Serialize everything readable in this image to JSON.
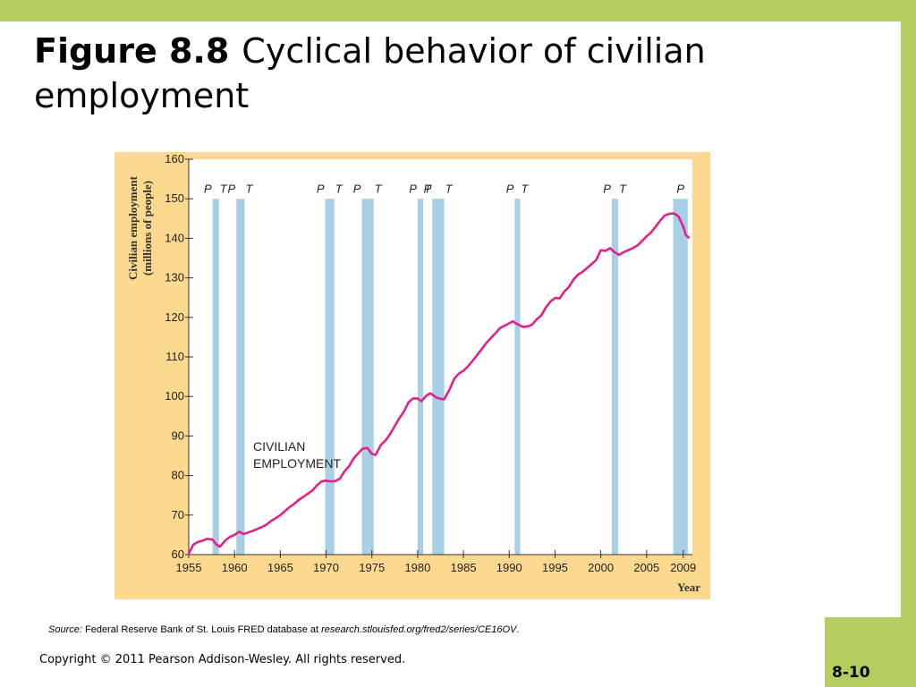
{
  "slide": {
    "title_prefix": "Figure 8.8",
    "title_text": "Cyclical behavior of civilian employment",
    "source_label": "Source:",
    "source_text": "Federal Reserve Bank of St. Louis FRED database at",
    "source_url": "research.stlouisfed.org/fred2/series/CE16OV",
    "source_end": ".",
    "copyright": "Copyright © 2011 Pearson Addison-Wesley. All rights reserved.",
    "slide_number": "8-10",
    "colors": {
      "accent": "#b5cd5f",
      "panel": "#fcd98f",
      "series": "#e0218a",
      "recession": "#a9cfe6"
    }
  },
  "chart_data": {
    "type": "line",
    "title": "",
    "xlabel": "Year",
    "ylabel": "Civilian employment (millions of people)",
    "ylabel_lines": [
      "Civilian employment",
      "(millions of people)"
    ],
    "xlim": [
      1955,
      2010
    ],
    "ylim": [
      60,
      160
    ],
    "xticks": [
      1955,
      1960,
      1965,
      1970,
      1975,
      1980,
      1985,
      1990,
      1995,
      2000,
      2005,
      2009
    ],
    "yticks": [
      60,
      70,
      80,
      90,
      100,
      110,
      120,
      130,
      140,
      150,
      160
    ],
    "grid": false,
    "annotation": [
      "CIVILIAN",
      "EMPLOYMENT"
    ],
    "recessions": [
      {
        "start": 1957.6,
        "end": 1958.3,
        "markers": [
          "P",
          "T"
        ]
      },
      {
        "start": 1960.2,
        "end": 1961.1,
        "markers": [
          "P",
          "T"
        ]
      },
      {
        "start": 1969.9,
        "end": 1970.9,
        "markers": [
          "P",
          "T"
        ]
      },
      {
        "start": 1973.9,
        "end": 1975.2,
        "markers": [
          "P",
          "T"
        ]
      },
      {
        "start": 1980.0,
        "end": 1980.6,
        "markers": [
          "P",
          "T"
        ]
      },
      {
        "start": 1981.6,
        "end": 1982.9,
        "markers": [
          "P",
          "T"
        ]
      },
      {
        "start": 1990.6,
        "end": 1991.2,
        "markers": [
          "P",
          "T"
        ]
      },
      {
        "start": 2001.2,
        "end": 2001.9,
        "markers": [
          "P",
          "T"
        ]
      },
      {
        "start": 2007.9,
        "end": 2009.5,
        "markers": [
          "P"
        ]
      }
    ],
    "series": [
      {
        "values": [
          [
            1955.0,
            60.2
          ],
          [
            1955.5,
            62.5
          ],
          [
            1956.0,
            63.2
          ],
          [
            1956.5,
            63.5
          ],
          [
            1957.0,
            64.0
          ],
          [
            1957.6,
            63.8
          ],
          [
            1958.0,
            62.6
          ],
          [
            1958.4,
            62.0
          ],
          [
            1959.0,
            63.6
          ],
          [
            1959.5,
            64.5
          ],
          [
            1960.0,
            65.0
          ],
          [
            1960.5,
            65.8
          ],
          [
            1961.0,
            65.2
          ],
          [
            1961.5,
            65.6
          ],
          [
            1962.0,
            66.0
          ],
          [
            1962.5,
            66.5
          ],
          [
            1963.0,
            67.0
          ],
          [
            1963.5,
            67.6
          ],
          [
            1964.0,
            68.5
          ],
          [
            1964.5,
            69.2
          ],
          [
            1965.0,
            70.0
          ],
          [
            1965.5,
            71.0
          ],
          [
            1966.0,
            72.0
          ],
          [
            1966.5,
            72.8
          ],
          [
            1967.0,
            73.8
          ],
          [
            1967.5,
            74.6
          ],
          [
            1968.0,
            75.4
          ],
          [
            1968.5,
            76.2
          ],
          [
            1969.0,
            77.5
          ],
          [
            1969.5,
            78.5
          ],
          [
            1970.0,
            78.7
          ],
          [
            1970.5,
            78.5
          ],
          [
            1971.0,
            78.6
          ],
          [
            1971.5,
            79.2
          ],
          [
            1972.0,
            81.0
          ],
          [
            1972.5,
            82.3
          ],
          [
            1973.0,
            84.3
          ],
          [
            1973.5,
            85.6
          ],
          [
            1974.0,
            86.8
          ],
          [
            1974.5,
            87.0
          ],
          [
            1975.0,
            85.5
          ],
          [
            1975.4,
            85.2
          ],
          [
            1976.0,
            87.8
          ],
          [
            1976.5,
            88.9
          ],
          [
            1977.0,
            90.5
          ],
          [
            1977.5,
            92.5
          ],
          [
            1978.0,
            94.5
          ],
          [
            1978.5,
            96.2
          ],
          [
            1979.0,
            98.5
          ],
          [
            1979.5,
            99.5
          ],
          [
            1980.0,
            99.5
          ],
          [
            1980.4,
            98.8
          ],
          [
            1981.0,
            100.3
          ],
          [
            1981.4,
            100.8
          ],
          [
            1982.0,
            99.8
          ],
          [
            1982.5,
            99.4
          ],
          [
            1982.9,
            99.3
          ],
          [
            1983.5,
            101.8
          ],
          [
            1984.0,
            104.5
          ],
          [
            1984.5,
            105.8
          ],
          [
            1985.0,
            106.5
          ],
          [
            1985.5,
            107.6
          ],
          [
            1986.0,
            109.0
          ],
          [
            1986.5,
            110.5
          ],
          [
            1987.0,
            112.0
          ],
          [
            1987.5,
            113.5
          ],
          [
            1988.0,
            114.8
          ],
          [
            1988.5,
            116.0
          ],
          [
            1989.0,
            117.3
          ],
          [
            1989.5,
            117.9
          ],
          [
            1990.0,
            118.5
          ],
          [
            1990.4,
            119.0
          ],
          [
            1990.8,
            118.4
          ],
          [
            1991.5,
            117.6
          ],
          [
            1992.0,
            117.7
          ],
          [
            1992.5,
            118.2
          ],
          [
            1993.0,
            119.5
          ],
          [
            1993.5,
            120.5
          ],
          [
            1994.0,
            122.5
          ],
          [
            1994.5,
            124.0
          ],
          [
            1995.0,
            124.9
          ],
          [
            1995.5,
            124.8
          ],
          [
            1996.0,
            126.5
          ],
          [
            1996.5,
            127.6
          ],
          [
            1997.0,
            129.5
          ],
          [
            1997.5,
            130.8
          ],
          [
            1998.0,
            131.5
          ],
          [
            1998.5,
            132.5
          ],
          [
            1999.0,
            133.5
          ],
          [
            1999.5,
            134.5
          ],
          [
            2000.0,
            137.0
          ],
          [
            2000.5,
            136.8
          ],
          [
            2001.0,
            137.5
          ],
          [
            2001.5,
            136.5
          ],
          [
            2002.0,
            135.8
          ],
          [
            2002.5,
            136.5
          ],
          [
            2003.0,
            137.0
          ],
          [
            2003.5,
            137.5
          ],
          [
            2004.0,
            138.2
          ],
          [
            2004.5,
            139.3
          ],
          [
            2005.0,
            140.5
          ],
          [
            2005.5,
            141.5
          ],
          [
            2006.0,
            143.0
          ],
          [
            2006.5,
            144.5
          ],
          [
            2007.0,
            145.8
          ],
          [
            2007.5,
            146.2
          ],
          [
            2008.0,
            146.3
          ],
          [
            2008.5,
            145.5
          ],
          [
            2009.0,
            143.0
          ],
          [
            2009.3,
            140.8
          ],
          [
            2009.6,
            140.2
          ]
        ]
      }
    ]
  }
}
